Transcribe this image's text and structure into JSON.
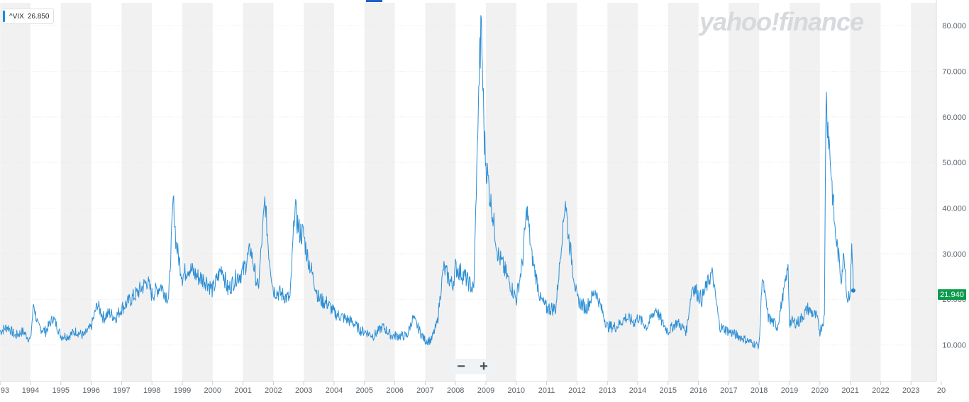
{
  "legend": {
    "symbol": "^VIX",
    "value": "26.850"
  },
  "watermark": "yahoo!finance",
  "last_value_label": "21.940",
  "zoom": {
    "minus": "−",
    "plus": "+"
  },
  "colors": {
    "line": "#2d8fd5",
    "band": "#f1f1f1",
    "grid": "#e6e8ea",
    "badge": "#0d9b4c"
  },
  "chart_data": {
    "type": "line",
    "title": "",
    "xlabel": "",
    "ylabel": "",
    "series": [
      {
        "name": "^VIX",
        "x": [
          1993.0,
          1993.25,
          1993.5,
          1993.75,
          1994.0,
          1994.1,
          1994.25,
          1994.5,
          1994.75,
          1995.0,
          1995.25,
          1995.5,
          1995.75,
          1996.0,
          1996.2,
          1996.4,
          1996.6,
          1996.8,
          1997.0,
          1997.3,
          1997.6,
          1997.85,
          1998.0,
          1998.3,
          1998.55,
          1998.7,
          1998.8,
          1999.0,
          1999.2,
          1999.5,
          1999.8,
          2000.0,
          2000.3,
          2000.5,
          2000.8,
          2001.0,
          2001.25,
          2001.5,
          2001.72,
          2001.85,
          2002.0,
          2002.3,
          2002.55,
          2002.7,
          2002.85,
          2003.0,
          2003.1,
          2003.3,
          2003.5,
          2003.8,
          2004.0,
          2004.3,
          2004.6,
          2004.9,
          2005.0,
          2005.3,
          2005.6,
          2005.9,
          2006.0,
          2006.4,
          2006.6,
          2006.9,
          2007.0,
          2007.2,
          2007.4,
          2007.6,
          2007.9,
          2008.0,
          2008.3,
          2008.6,
          2008.78,
          2008.85,
          2008.95,
          2009.0,
          2009.15,
          2009.4,
          2009.7,
          2010.0,
          2010.2,
          2010.35,
          2010.5,
          2010.8,
          2011.0,
          2011.3,
          2011.62,
          2011.7,
          2011.9,
          2012.0,
          2012.3,
          2012.6,
          2012.9,
          2013.0,
          2013.3,
          2013.6,
          2013.9,
          2014.0,
          2014.3,
          2014.6,
          2014.8,
          2015.0,
          2015.3,
          2015.6,
          2015.8,
          2016.0,
          2016.1,
          2016.45,
          2016.7,
          2017.0,
          2017.3,
          2017.6,
          2017.9,
          2018.0,
          2018.1,
          2018.3,
          2018.6,
          2018.95,
          2019.0,
          2019.3,
          2019.6,
          2019.9,
          2020.0,
          2020.15,
          2020.2,
          2020.3,
          2020.5,
          2020.7,
          2020.8,
          2020.9,
          2021.0,
          2021.05,
          2021.1
        ],
        "values": [
          13,
          14,
          12,
          13,
          11,
          19,
          14,
          13,
          16,
          12,
          12,
          13,
          12,
          14,
          19,
          16,
          17,
          16,
          18,
          20,
          22,
          24,
          21,
          23,
          20,
          42,
          32,
          25,
          27,
          25,
          24,
          22,
          27,
          22,
          25,
          26,
          31,
          22,
          42,
          30,
          22,
          21,
          20,
          40,
          35,
          34,
          30,
          25,
          20,
          19,
          17,
          16,
          15,
          13,
          13,
          12,
          14,
          12,
          12,
          12,
          16,
          12,
          11,
          11,
          15,
          27,
          23,
          27,
          25,
          22,
          70,
          79,
          55,
          50,
          42,
          30,
          25,
          20,
          28,
          40,
          30,
          20,
          18,
          18,
          42,
          35,
          25,
          20,
          18,
          22,
          16,
          14,
          14,
          16,
          15,
          16,
          14,
          18,
          15,
          13,
          15,
          13,
          23,
          21,
          20,
          26,
          14,
          13,
          12,
          11,
          10,
          10,
          25,
          16,
          14,
          27,
          15,
          15,
          18,
          16,
          13,
          16,
          65,
          55,
          35,
          25,
          30,
          20,
          22,
          33,
          22
        ]
      }
    ],
    "x_ticks": [
      "93",
      "1994",
      "1995",
      "1996",
      "1997",
      "1998",
      "1999",
      "2000",
      "2001",
      "2002",
      "2003",
      "2004",
      "2005",
      "2006",
      "2007",
      "2008",
      "2009",
      "2010",
      "2011",
      "2012",
      "2013",
      "2014",
      "2015",
      "2016",
      "2017",
      "2018",
      "2019",
      "2020",
      "2021",
      "2022",
      "2023",
      "20"
    ],
    "y_ticks": [
      "10.000",
      "20.000",
      "30.000",
      "40.000",
      "50.000",
      "60.000",
      "70.000",
      "80.000"
    ],
    "xlim": [
      1993,
      2024
    ],
    "ylim": [
      2,
      85
    ],
    "grid": true,
    "legend_position": "top-left",
    "last_point": {
      "x": 2021.1,
      "y": 21.94
    }
  }
}
